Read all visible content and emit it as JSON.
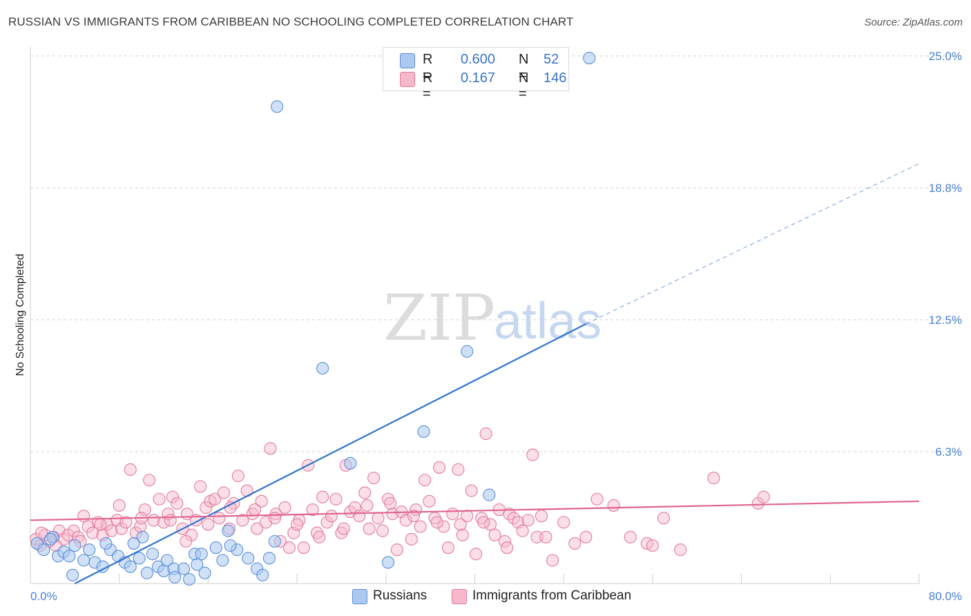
{
  "header": {
    "title": "RUSSIAN VS IMMIGRANTS FROM CARIBBEAN NO SCHOOLING COMPLETED CORRELATION CHART",
    "source": "Source: ZipAtlas.com"
  },
  "watermark": {
    "zip": "ZIP",
    "atlas": "atlas"
  },
  "legend": {
    "rows": [
      {
        "r_label": "R =",
        "r_value": "0.600",
        "n_label": "N =",
        "n_value": "52"
      },
      {
        "r_label": "R =",
        "r_value": "0.167",
        "n_label": "N =",
        "n_value": "146"
      }
    ]
  },
  "bottom_legend": {
    "russians": "Russians",
    "caribbean": "Immigrants from Caribbean"
  },
  "colors": {
    "blue_fill": "#aac8f0",
    "blue_stroke": "#5a8fd6",
    "blue_line": "#2f74d0",
    "pink_fill": "#f6b8cb",
    "pink_stroke": "#e27a9c",
    "pink_line": "#e0648f",
    "grid": "#d0d0d0",
    "tick_text": "#4a7fd0"
  },
  "chart_data": {
    "type": "scatter",
    "title": "RUSSIAN VS IMMIGRANTS FROM CARIBBEAN NO SCHOOLING COMPLETED CORRELATION CHART",
    "ylabel": "No Schooling Completed",
    "xlim": [
      0,
      80
    ],
    "ylim": [
      0,
      26
    ],
    "x_tick_labels": [
      "0.0%",
      "80.0%"
    ],
    "y_ticks": [
      6.25,
      12.5,
      18.75,
      25.0
    ],
    "y_tick_labels": [
      "6.3%",
      "12.5%",
      "18.8%",
      "25.0%"
    ],
    "grid": "horizontal dashed",
    "series": [
      {
        "name": "Russians",
        "R": 0.6,
        "N": 52,
        "trend": {
          "x0": 4.0,
          "y0": 0.0,
          "x1": 50.0,
          "y1": 12.3,
          "dash_to_x": 80.0,
          "dash_to_y": 19.9
        },
        "points": [
          [
            0.6,
            1.9
          ],
          [
            1.2,
            1.6
          ],
          [
            2.0,
            2.2
          ],
          [
            2.5,
            1.3
          ],
          [
            3.0,
            1.5
          ],
          [
            3.5,
            1.3
          ],
          [
            4.0,
            1.8
          ],
          [
            4.8,
            1.1
          ],
          [
            5.3,
            1.6
          ],
          [
            5.8,
            1.0
          ],
          [
            6.5,
            0.8
          ],
          [
            7.2,
            1.6
          ],
          [
            7.9,
            1.3
          ],
          [
            8.5,
            1.0
          ],
          [
            9.0,
            0.8
          ],
          [
            9.8,
            1.2
          ],
          [
            10.1,
            2.2
          ],
          [
            10.5,
            0.5
          ],
          [
            11.0,
            1.4
          ],
          [
            11.5,
            0.8
          ],
          [
            12.0,
            0.6
          ],
          [
            12.3,
            1.1
          ],
          [
            12.9,
            0.7
          ],
          [
            13.8,
            0.7
          ],
          [
            14.3,
            0.2
          ],
          [
            14.8,
            1.4
          ],
          [
            15.4,
            1.4
          ],
          [
            15.7,
            0.5
          ],
          [
            16.7,
            1.7
          ],
          [
            17.3,
            1.1
          ],
          [
            17.8,
            2.5
          ],
          [
            18.6,
            1.6
          ],
          [
            19.6,
            1.2
          ],
          [
            20.4,
            0.7
          ],
          [
            20.9,
            0.4
          ],
          [
            22.0,
            2.0
          ],
          [
            22.2,
            22.6
          ],
          [
            26.3,
            10.2
          ],
          [
            28.8,
            5.7
          ],
          [
            35.4,
            7.2
          ],
          [
            39.3,
            11.0
          ],
          [
            41.3,
            4.2
          ],
          [
            50.3,
            24.9
          ],
          [
            3.8,
            0.4
          ],
          [
            6.8,
            1.9
          ],
          [
            9.3,
            1.9
          ],
          [
            13.0,
            0.3
          ],
          [
            15.0,
            0.9
          ],
          [
            18.0,
            1.8
          ],
          [
            21.5,
            1.2
          ],
          [
            1.8,
            2.1
          ],
          [
            32.2,
            1.0
          ]
        ]
      },
      {
        "name": "Immigrants from Caribbean",
        "R": 0.167,
        "N": 146,
        "trend": {
          "x0": 0.0,
          "y0": 3.0,
          "x1": 80.0,
          "y1": 3.9
        },
        "points": [
          [
            0.5,
            2.1
          ],
          [
            0.9,
            1.8
          ],
          [
            1.3,
            2.3
          ],
          [
            1.7,
            2.0
          ],
          [
            2.1,
            2.2
          ],
          [
            2.6,
            2.5
          ],
          [
            3.0,
            2.1
          ],
          [
            3.4,
            2.3
          ],
          [
            3.9,
            2.5
          ],
          [
            4.3,
            2.2
          ],
          [
            4.8,
            3.2
          ],
          [
            5.2,
            2.7
          ],
          [
            5.6,
            2.4
          ],
          [
            6.1,
            2.9
          ],
          [
            6.5,
            2.3
          ],
          [
            6.9,
            2.8
          ],
          [
            7.3,
            2.5
          ],
          [
            7.8,
            3.0
          ],
          [
            8.2,
            2.6
          ],
          [
            8.6,
            2.9
          ],
          [
            9.0,
            5.4
          ],
          [
            9.5,
            2.4
          ],
          [
            9.9,
            2.7
          ],
          [
            10.3,
            3.5
          ],
          [
            10.7,
            4.9
          ],
          [
            11.1,
            3.0
          ],
          [
            11.6,
            4.0
          ],
          [
            12.0,
            2.9
          ],
          [
            12.4,
            3.3
          ],
          [
            12.8,
            4.1
          ],
          [
            13.2,
            3.8
          ],
          [
            13.7,
            2.6
          ],
          [
            14.1,
            3.3
          ],
          [
            14.5,
            2.3
          ],
          [
            14.9,
            3.0
          ],
          [
            15.3,
            4.6
          ],
          [
            15.8,
            3.6
          ],
          [
            16.2,
            3.9
          ],
          [
            16.6,
            4.0
          ],
          [
            17.0,
            3.1
          ],
          [
            17.4,
            4.3
          ],
          [
            17.9,
            2.6
          ],
          [
            18.3,
            3.8
          ],
          [
            18.7,
            5.1
          ],
          [
            19.1,
            3.0
          ],
          [
            19.5,
            4.4
          ],
          [
            20.0,
            3.3
          ],
          [
            20.4,
            2.6
          ],
          [
            20.8,
            3.9
          ],
          [
            21.2,
            2.9
          ],
          [
            21.6,
            6.4
          ],
          [
            22.1,
            3.3
          ],
          [
            22.5,
            2.0
          ],
          [
            22.9,
            3.6
          ],
          [
            23.3,
            1.7
          ],
          [
            23.7,
            2.4
          ],
          [
            24.2,
            3.0
          ],
          [
            24.6,
            1.7
          ],
          [
            25.0,
            5.6
          ],
          [
            25.4,
            3.5
          ],
          [
            25.8,
            2.4
          ],
          [
            26.3,
            4.1
          ],
          [
            26.7,
            2.9
          ],
          [
            27.1,
            3.2
          ],
          [
            27.5,
            4.0
          ],
          [
            28.0,
            2.4
          ],
          [
            28.4,
            5.6
          ],
          [
            28.8,
            3.4
          ],
          [
            29.2,
            3.6
          ],
          [
            29.6,
            3.2
          ],
          [
            30.1,
            4.3
          ],
          [
            30.5,
            2.6
          ],
          [
            30.9,
            5.0
          ],
          [
            31.3,
            3.1
          ],
          [
            31.7,
            2.5
          ],
          [
            32.2,
            4.0
          ],
          [
            32.6,
            3.3
          ],
          [
            33.0,
            1.6
          ],
          [
            33.4,
            3.4
          ],
          [
            33.8,
            3.0
          ],
          [
            34.3,
            2.1
          ],
          [
            34.7,
            3.5
          ],
          [
            35.1,
            2.7
          ],
          [
            35.5,
            4.9
          ],
          [
            35.9,
            3.9
          ],
          [
            36.4,
            3.1
          ],
          [
            36.8,
            5.5
          ],
          [
            37.2,
            2.7
          ],
          [
            37.6,
            1.7
          ],
          [
            38.0,
            3.3
          ],
          [
            38.5,
            5.4
          ],
          [
            38.9,
            2.3
          ],
          [
            39.3,
            3.2
          ],
          [
            39.7,
            4.4
          ],
          [
            40.1,
            1.4
          ],
          [
            40.6,
            3.1
          ],
          [
            41.0,
            7.1
          ],
          [
            41.4,
            2.8
          ],
          [
            41.8,
            2.3
          ],
          [
            42.2,
            3.5
          ],
          [
            42.7,
            2.0
          ],
          [
            43.1,
            3.3
          ],
          [
            43.5,
            3.1
          ],
          [
            43.9,
            2.9
          ],
          [
            44.3,
            2.5
          ],
          [
            44.8,
            3.0
          ],
          [
            45.2,
            6.1
          ],
          [
            45.6,
            2.2
          ],
          [
            46.0,
            3.2
          ],
          [
            46.4,
            2.2
          ],
          [
            47.0,
            1.1
          ],
          [
            48.0,
            2.9
          ],
          [
            49.0,
            1.9
          ],
          [
            50.0,
            2.2
          ],
          [
            51.0,
            4.0
          ],
          [
            52.5,
            3.7
          ],
          [
            55.5,
            1.9
          ],
          [
            57.0,
            3.1
          ],
          [
            58.5,
            1.6
          ],
          [
            61.5,
            5.0
          ],
          [
            65.5,
            3.8
          ],
          [
            66.0,
            4.1
          ],
          [
            1.0,
            2.4
          ],
          [
            2.3,
            1.8
          ],
          [
            4.5,
            2.0
          ],
          [
            6.3,
            2.8
          ],
          [
            8.0,
            3.7
          ],
          [
            10.0,
            3.1
          ],
          [
            12.6,
            3.0
          ],
          [
            14.0,
            2.0
          ],
          [
            16.0,
            2.8
          ],
          [
            18.0,
            3.6
          ],
          [
            20.2,
            3.5
          ],
          [
            22.0,
            3.1
          ],
          [
            24.0,
            2.8
          ],
          [
            26.0,
            2.2
          ],
          [
            28.2,
            2.6
          ],
          [
            30.3,
            3.7
          ],
          [
            32.4,
            3.8
          ],
          [
            34.5,
            3.2
          ],
          [
            36.6,
            2.9
          ],
          [
            38.7,
            2.8
          ],
          [
            40.8,
            2.9
          ],
          [
            42.9,
            1.7
          ],
          [
            54.0,
            2.2
          ],
          [
            56.0,
            1.8
          ]
        ]
      }
    ]
  }
}
